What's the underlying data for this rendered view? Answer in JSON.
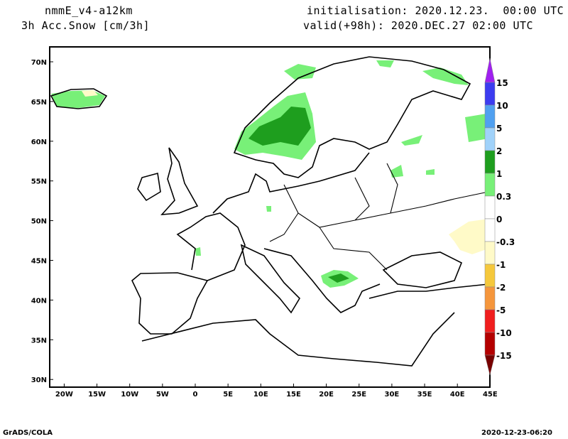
{
  "header": {
    "model": "nmmE_v4-a12km",
    "variable": "3h Acc.Snow [cm/3h]",
    "initialisation": "initialisation: 2020.12.23.  00:00 UTC",
    "valid": "valid(+98h): 2020.DEC.27 02:00 UTC"
  },
  "map": {
    "lon_ticks": [
      "20W",
      "15W",
      "10W",
      "5W",
      "0",
      "5E",
      "10E",
      "15E",
      "20E",
      "25E",
      "30E",
      "35E",
      "40E",
      "45E"
    ],
    "lon_values": [
      -20,
      -15,
      -10,
      -5,
      0,
      5,
      10,
      15,
      20,
      25,
      30,
      35,
      40,
      45
    ],
    "lat_ticks": [
      "70N",
      "65N",
      "60N",
      "55N",
      "50N",
      "45N",
      "40N",
      "35N",
      "30N"
    ],
    "lat_values": [
      70,
      65,
      60,
      55,
      50,
      45,
      40,
      35,
      30
    ]
  },
  "colorbar": {
    "labels": [
      "15",
      "10",
      "5",
      "2",
      "1",
      "0.3",
      "0",
      "-0.3",
      "-1",
      "-2",
      "-5",
      "-10",
      "-15"
    ],
    "colors": [
      "#a020f0",
      "#3c3cf0",
      "#50a0f0",
      "#a0d2fa",
      "#1e9e1e",
      "#78f078",
      "#ffffff",
      "#ffffff",
      "#fffac8",
      "#f5c83c",
      "#f5963c",
      "#f01e1e",
      "#b40000",
      "#780000"
    ]
  },
  "footer": {
    "left": "GrADS/COLA",
    "right": "2020-12-23-06:20"
  }
}
